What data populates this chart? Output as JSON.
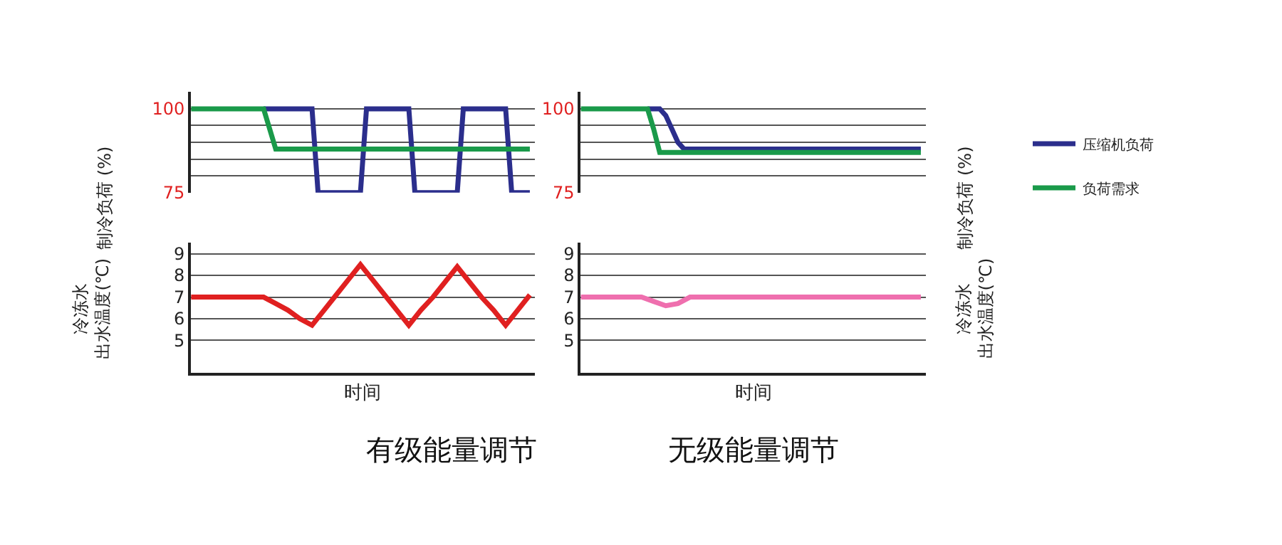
{
  "chart_data": [
    {
      "type": "line",
      "ylabel": "制冷负荷 (%)",
      "categories": [
        null,
        null,
        null,
        null,
        null,
        null,
        null,
        null,
        null,
        null,
        null,
        null,
        null,
        null,
        null,
        null,
        null,
        null,
        null,
        null,
        null,
        null,
        null,
        null,
        null,
        null,
        null,
        null,
        null,
        null,
        null,
        null,
        null,
        null,
        null,
        null,
        null,
        null,
        null,
        null,
        null,
        null,
        null,
        null,
        null,
        null,
        null,
        null,
        null,
        null,
        null,
        null,
        null,
        null,
        null,
        null,
        null
      ],
      "ylim": [
        75,
        105
      ],
      "yticks": [
        100,
        {
          "value": 95,
          "label": null
        },
        {
          "value": 90,
          "label": null
        },
        {
          "value": 85,
          "label": null
        },
        {
          "value": 80,
          "label": null
        },
        75
      ],
      "grid": "y",
      "tick_labels": "y",
      "legend": "right",
      "series": [
        {
          "name": "压缩机负荷",
          "color": "#2b2e8c",
          "values": [
            null,
            null,
            null,
            null,
            null,
            null,
            null,
            null,
            null,
            null,
            null,
            null,
            100,
            100,
            100,
            100,
            100,
            100,
            100,
            100,
            100,
            75,
            75,
            75,
            75,
            75,
            75,
            75,
            75,
            100,
            100,
            100,
            100,
            100,
            100,
            100,
            100,
            75,
            75,
            75,
            75,
            75,
            75,
            75,
            75,
            100,
            100,
            100,
            100,
            100,
            100,
            100,
            100,
            75,
            75,
            75,
            75
          ]
        },
        {
          "name": "负荷需求",
          "color": "#1a9a4a",
          "values": [
            100,
            100,
            100,
            100,
            100,
            100,
            100,
            100,
            100,
            100,
            100,
            100,
            100,
            94,
            88,
            88,
            88,
            88,
            88,
            88,
            88,
            88,
            88,
            88,
            88,
            88,
            88,
            88,
            88,
            88,
            88,
            88,
            88,
            88,
            88,
            88,
            88,
            88,
            88,
            88,
            88,
            88,
            88,
            88,
            88,
            88,
            88,
            88,
            88,
            88,
            88,
            88,
            88,
            88,
            88,
            88,
            88
          ]
        }
      ]
    },
    {
      "type": "line",
      "ylabel": "制冷负荷 (%)",
      "categories": [
        null,
        null,
        null,
        null,
        null,
        null,
        null,
        null,
        null,
        null,
        null,
        null,
        null,
        null,
        null,
        null,
        null,
        null,
        null,
        null,
        null,
        null,
        null,
        null,
        null,
        null,
        null,
        null,
        null,
        null,
        null,
        null,
        null,
        null,
        null,
        null,
        null,
        null,
        null,
        null,
        null,
        null,
        null,
        null,
        null,
        null,
        null,
        null,
        null,
        null,
        null,
        null,
        null,
        null,
        null,
        null,
        null
      ],
      "ylim": [
        75,
        105
      ],
      "yticks": [
        100,
        {
          "value": 95,
          "label": null
        },
        {
          "value": 90,
          "label": null
        },
        {
          "value": 85,
          "label": null
        },
        {
          "value": 80,
          "label": null
        },
        75
      ],
      "grid": "y",
      "tick_labels": "y",
      "series": [
        {
          "color": "#2b2e8c",
          "values": [
            null,
            null,
            null,
            null,
            null,
            null,
            null,
            null,
            null,
            null,
            null,
            100,
            100,
            100,
            98,
            94,
            90,
            88,
            88,
            88,
            88,
            88,
            88,
            88,
            88,
            88,
            88,
            88,
            88,
            88,
            88,
            88,
            88,
            88,
            88,
            88,
            88,
            88,
            88,
            88,
            88,
            88,
            88,
            88,
            88,
            88,
            88,
            88,
            88,
            88,
            88,
            88,
            88,
            88,
            88,
            88,
            88
          ]
        },
        {
          "color": "#1a9a4a",
          "values": [
            100,
            100,
            100,
            100,
            100,
            100,
            100,
            100,
            100,
            100,
            100,
            100,
            94,
            87,
            87,
            87,
            87,
            87,
            87,
            87,
            87,
            87,
            87,
            87,
            87,
            87,
            87,
            87,
            87,
            87,
            87,
            87,
            87,
            87,
            87,
            87,
            87,
            87,
            87,
            87,
            87,
            87,
            87,
            87,
            87,
            87,
            87,
            87,
            87,
            87,
            87,
            87,
            87,
            87,
            87,
            87,
            87
          ]
        }
      ]
    },
    {
      "type": "line",
      "ylabel": "冷冻水出水温度(℃)",
      "xlabel": "时间",
      "title": "有级能量调节",
      "categories": [
        null,
        null,
        null,
        null,
        null,
        null,
        null,
        null,
        null,
        null,
        null,
        null,
        null,
        null,
        null,
        null,
        null,
        null,
        null,
        null,
        null,
        null,
        null,
        null,
        null,
        null,
        null,
        null,
        null
      ],
      "ylim": [
        3.5,
        9.5
      ],
      "yticks": [
        5,
        6,
        7,
        8,
        9
      ],
      "grid": "y",
      "tick_labels": "y",
      "series": [
        {
          "color": "#e02020",
          "values": [
            7,
            7,
            7,
            7,
            7,
            7,
            7,
            6.7,
            6.4,
            6.0,
            5.7,
            6.4,
            7.1,
            7.8,
            8.5,
            7.8,
            7.1,
            6.4,
            5.7,
            6.4,
            7.0,
            7.7,
            8.4,
            7.7,
            7.0,
            6.4,
            5.7,
            6.4,
            7.1
          ]
        }
      ]
    },
    {
      "type": "line",
      "ylabel": "冷冻水出水温度(℃)",
      "xlabel": "时间",
      "title": "无级能量调节",
      "categories": [
        null,
        null,
        null,
        null,
        null,
        null,
        null,
        null,
        null,
        null,
        null,
        null,
        null,
        null,
        null,
        null,
        null,
        null,
        null,
        null,
        null,
        null,
        null,
        null,
        null,
        null,
        null,
        null,
        null
      ],
      "ylim": [
        3.5,
        9.5
      ],
      "yticks": [
        5,
        6,
        7,
        8,
        9
      ],
      "grid": "y",
      "tick_labels": "y",
      "series": [
        {
          "color": "#ef6fae",
          "values": [
            7,
            7,
            7,
            7,
            7,
            7,
            6.8,
            6.6,
            6.7,
            7,
            7,
            7,
            7,
            7,
            7,
            7,
            7,
            7,
            7,
            7,
            7,
            7,
            7,
            7,
            7,
            7,
            7,
            7,
            7
          ]
        }
      ]
    }
  ]
}
